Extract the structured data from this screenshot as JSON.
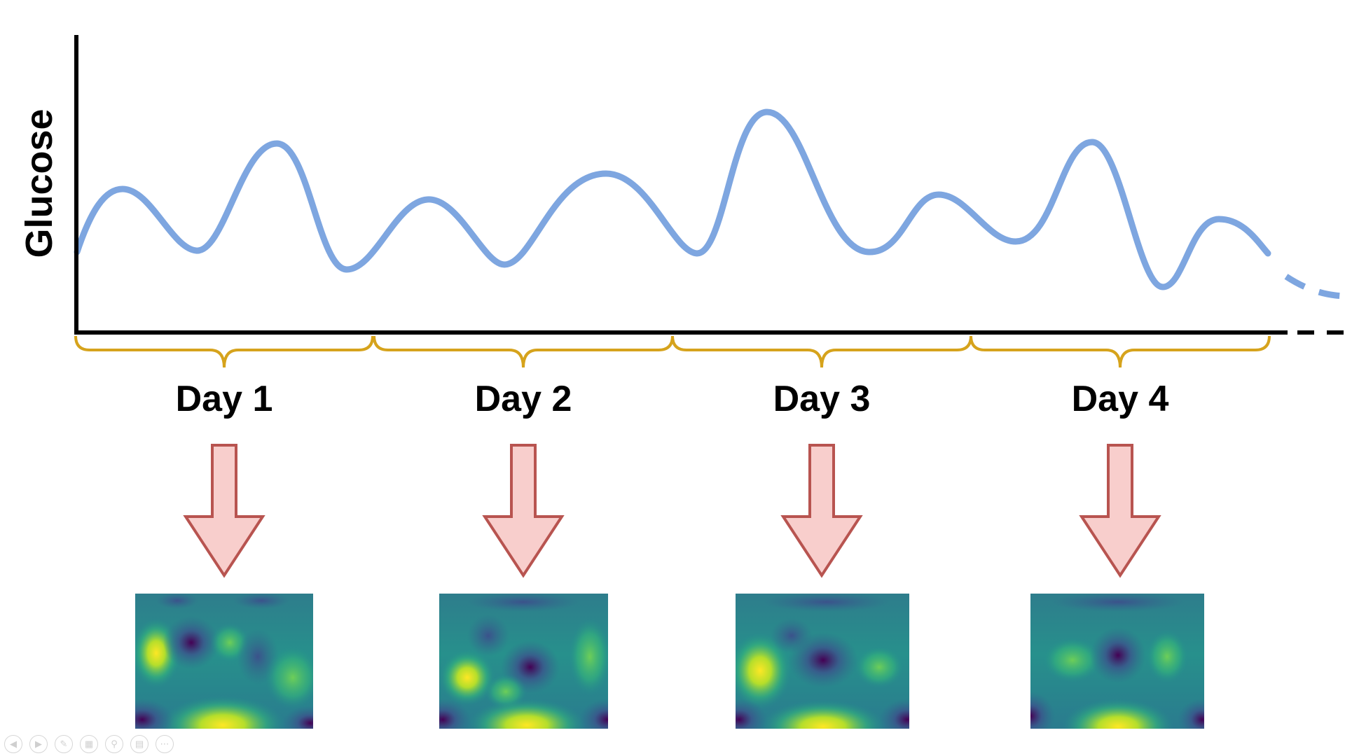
{
  "axes": {
    "ylabel": "Glucose"
  },
  "days": [
    {
      "label": "Day 1"
    },
    {
      "label": "Day 2"
    },
    {
      "label": "Day 3"
    },
    {
      "label": "Day 4"
    }
  ],
  "colors": {
    "curve": "#7ea6e0",
    "brace": "#d6a31c",
    "arrow_fill": "#f8cecc",
    "arrow_stroke": "#b85450",
    "axis": "#000000"
  },
  "toolbar": {
    "icons": [
      "previous-icon",
      "next-icon",
      "pen-icon",
      "slides-icon",
      "zoom-icon",
      "subtitles-icon",
      "more-icon"
    ]
  }
}
